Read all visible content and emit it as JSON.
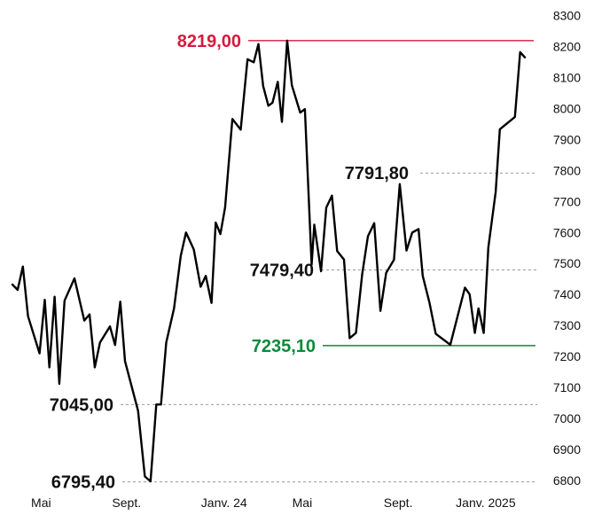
{
  "chart_data": {
    "type": "line",
    "ylim": [
      6800,
      8300
    ],
    "xlim": [
      0,
      100
    ],
    "grid": false,
    "y_ticks": [
      6800,
      6900,
      7000,
      7100,
      7200,
      7300,
      7400,
      7500,
      7600,
      7700,
      7800,
      7900,
      8000,
      8100,
      8200,
      8300
    ],
    "y_tick_labels": [
      "6800",
      "6900",
      "7000",
      "7100",
      "7200",
      "7300",
      "7400",
      "7500",
      "7600",
      "7700",
      "7800",
      "7900",
      "8000",
      "8100",
      "8200",
      "8300"
    ],
    "x_ticks": [
      {
        "label": "Mai",
        "x": 5.5
      },
      {
        "label": "Sept.",
        "x": 21.9
      },
      {
        "label": "Janv. 24",
        "x": 40.6
      },
      {
        "label": "Mai",
        "x": 55.6
      },
      {
        "label": "Sept.",
        "x": 74.0
      },
      {
        "label": "Janv. 2025",
        "x": 90.8
      }
    ],
    "series": [
      {
        "color": "#000000",
        "x": [
          0,
          1.0,
          2.0,
          3.0,
          5.2,
          6.2,
          7.1,
          8.1,
          9.0,
          10.0,
          11.9,
          13.8,
          14.8,
          15.8,
          16.8,
          18.7,
          19.7,
          20.7,
          21.6,
          24.1,
          25.4,
          26.5,
          27.6,
          28.5,
          29.5,
          31.0,
          32.3,
          33.3,
          34.8,
          36.1,
          37.1,
          38.2,
          39.0,
          39.9,
          40.8,
          42.2,
          43.8,
          45.1,
          46.3,
          47.2,
          48.1,
          49.1,
          49.9,
          50.9,
          51.7,
          52.7,
          53.6,
          55.2,
          56.1,
          57.4,
          57.9,
          59.2,
          60.2,
          61.3,
          62.3,
          63.6,
          64.7,
          65.9,
          67.1,
          68.2,
          69.4,
          70.6,
          71.7,
          73.2,
          74.3,
          75.6,
          76.7,
          77.9,
          78.7,
          80.0,
          81.2,
          84.0,
          86.8,
          87.7,
          88.7,
          89.4,
          90.4,
          91.3,
          92.7,
          93.5,
          96.4,
          97.4,
          98.3
        ],
        "y": [
          7432,
          7415,
          7490,
          7330,
          7210,
          7383,
          7165,
          7393,
          7112,
          7380,
          7452,
          7316,
          7336,
          7165,
          7245,
          7297,
          7237,
          7377,
          7185,
          7025,
          6813,
          6797,
          7045,
          7045,
          7245,
          7355,
          7525,
          7600,
          7545,
          7425,
          7460,
          7373,
          7632,
          7595,
          7681,
          7966,
          7932,
          8159,
          8149,
          8208,
          8073,
          8009,
          8019,
          8086,
          7957,
          8219,
          8075,
          7987,
          7998,
          7496,
          7625,
          7475,
          7680,
          7719,
          7540,
          7513,
          7259,
          7276,
          7465,
          7588,
          7630,
          7347,
          7470,
          7512,
          7756,
          7542,
          7600,
          7611,
          7460,
          7374,
          7273,
          7238,
          7422,
          7401,
          7276,
          7355,
          7276,
          7551,
          7731,
          7933,
          7973,
          8182,
          8165
        ]
      }
    ],
    "annotations": [
      {
        "label": "8219,00",
        "value": 8219.0,
        "color": "#d7193f",
        "line": "solid"
      },
      {
        "label": "7791,80",
        "value": 7791.8,
        "color": "#111111",
        "line": "dashed"
      },
      {
        "label": "7479,40",
        "value": 7479.4,
        "color": "#111111",
        "line": "dashed"
      },
      {
        "label": "7235,10",
        "value": 7235.1,
        "color": "#0a8a3a",
        "line": "solid"
      },
      {
        "label": "7045,00",
        "value": 7045.0,
        "color": "#111111",
        "line": "dashed"
      },
      {
        "label": "6795,40",
        "value": 6795.4,
        "color": "#111111",
        "line": "dashed"
      }
    ]
  }
}
